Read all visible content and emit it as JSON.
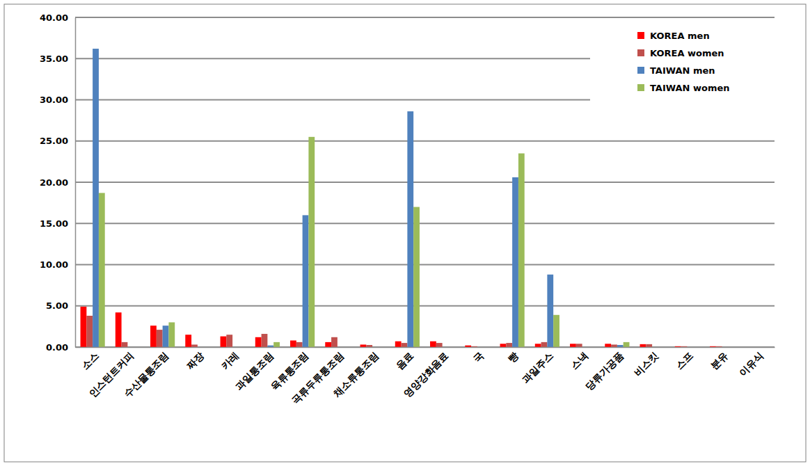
{
  "chart_data": {
    "type": "bar",
    "categories": [
      "소스",
      "인스턴트커피",
      "수산물통조림",
      "짜장",
      "카레",
      "과일통조림",
      "육류통조림",
      "곡류두류통조림",
      "채소류통조림",
      "음료",
      "영양강화음료",
      "국",
      "빵",
      "과일주스",
      "스낵",
      "당류가공품",
      "비스킷",
      "스프",
      "분유",
      "이유식"
    ],
    "series": [
      {
        "name": "KOREA men",
        "color": "#ff0000",
        "values": [
          4.9,
          4.2,
          2.6,
          1.5,
          1.3,
          1.2,
          0.8,
          0.6,
          0.3,
          0.7,
          0.7,
          0.2,
          0.4,
          0.4,
          0.4,
          0.4,
          0.35,
          0.1,
          0.1,
          0.0
        ]
      },
      {
        "name": "KOREA women",
        "color": "#c0504d",
        "values": [
          3.8,
          0.6,
          2.1,
          0.3,
          1.5,
          1.6,
          0.6,
          1.2,
          0.25,
          0.5,
          0.5,
          0.1,
          0.5,
          0.6,
          0.4,
          0.3,
          0.35,
          0.1,
          0.1,
          0.0
        ]
      },
      {
        "name": "TAIWAN men",
        "color": "#4f81bd",
        "values": [
          36.2,
          0,
          2.6,
          0,
          0,
          0.2,
          16.0,
          0,
          0,
          28.6,
          0,
          0,
          20.6,
          8.8,
          0,
          0.25,
          0,
          0,
          0,
          0
        ]
      },
      {
        "name": "TAIWAN women",
        "color": "#9bbb59",
        "values": [
          18.7,
          0,
          3.0,
          0,
          0,
          0.6,
          25.5,
          0,
          0,
          17.0,
          0,
          0,
          23.5,
          3.9,
          0,
          0.6,
          0,
          0,
          0,
          0
        ]
      }
    ],
    "ylim": [
      0,
      40
    ],
    "yticks": [
      {
        "value": 0,
        "label": "0.00"
      },
      {
        "value": 5,
        "label": "5.00"
      },
      {
        "value": 10,
        "label": "10.00"
      },
      {
        "value": 15,
        "label": "15.00"
      },
      {
        "value": 20,
        "label": "20.00"
      },
      {
        "value": 25,
        "label": "25.00"
      },
      {
        "value": 30,
        "label": "30.00"
      },
      {
        "value": 35,
        "label": "35.00"
      },
      {
        "value": 40,
        "label": "40.00"
      }
    ],
    "grid": true,
    "legend": "top-right"
  }
}
